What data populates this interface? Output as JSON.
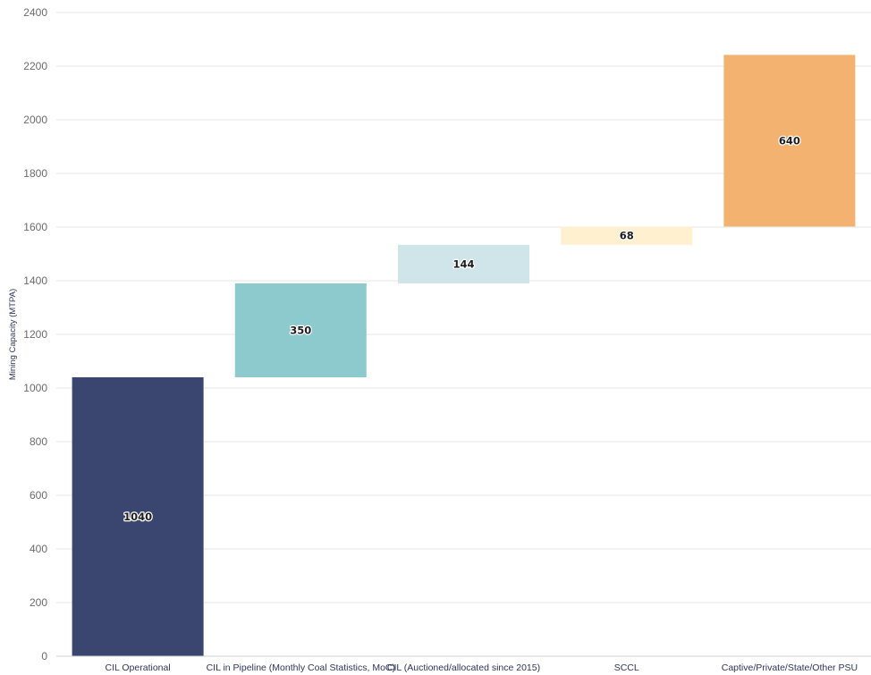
{
  "chart_data": {
    "type": "bar",
    "subtype": "waterfall",
    "categories": [
      "CIL Operational",
      "CIL in Pipeline (Monthly Coal Statistics, MoC)",
      "CIL (Auctioned/allocated since 2015)",
      "SCCL",
      "Captive/Private/State/Other PSU"
    ],
    "values": [
      1040,
      350,
      144,
      68,
      640
    ],
    "colors": [
      "#3b4670",
      "#8ccace",
      "#cfe5ea",
      "#fff1cf",
      "#f3b26f"
    ],
    "ylabel": "Mining Capacity (MTPA)",
    "xlabel": "",
    "ylim": [
      0,
      2400
    ],
    "yticks": [
      0,
      200,
      400,
      600,
      800,
      1000,
      1200,
      1400,
      1600,
      1800,
      2000,
      2200,
      2400
    ],
    "grid": true,
    "legend": "none"
  }
}
